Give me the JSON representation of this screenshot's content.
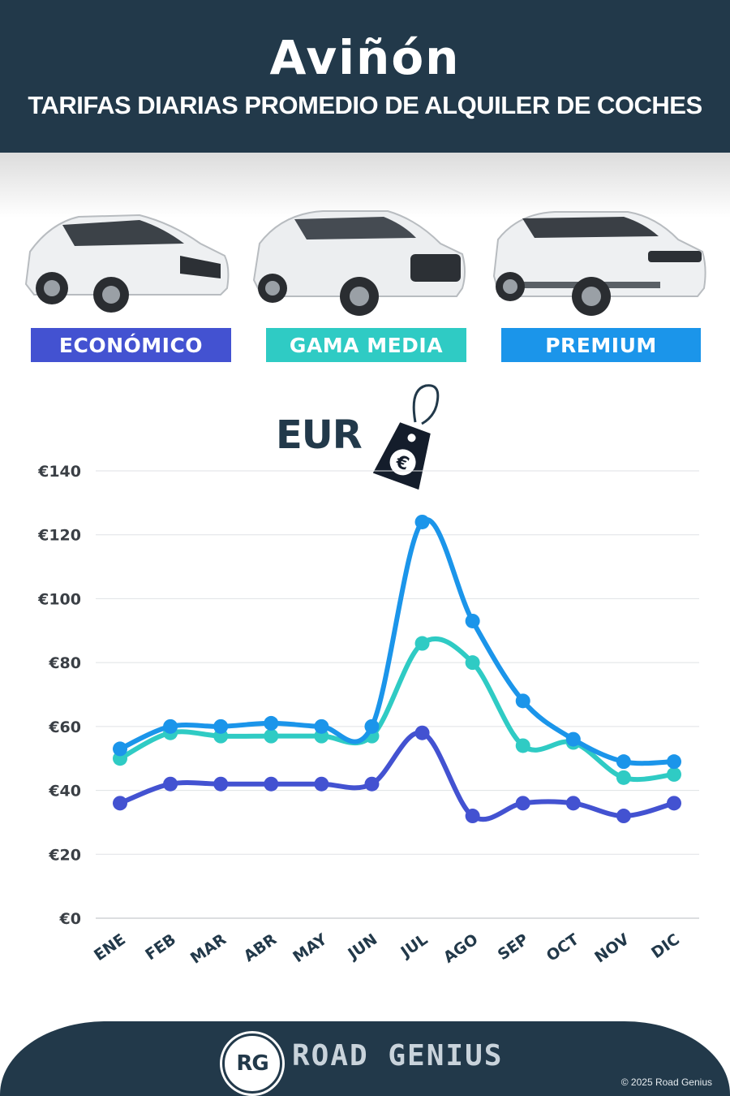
{
  "header": {
    "city": "Aviñón",
    "subtitle": "TARIFAS DIARIAS PROMEDIO DE ALQUILER DE COCHES"
  },
  "categories": [
    {
      "label": "ECONÓMICO",
      "color": "#4352d1",
      "icon": "hatchback-car"
    },
    {
      "label": "GAMA MEDIA",
      "color": "#2fcbc4",
      "icon": "suv-car"
    },
    {
      "label": "PREMIUM",
      "color": "#1b95ea",
      "icon": "luxury-suv-car"
    }
  ],
  "currency_label": "EUR",
  "currency_icon": "euro-price-tag-icon",
  "chart_data": {
    "type": "line",
    "categories": [
      "ENE",
      "FEB",
      "MAR",
      "ABR",
      "MAY",
      "JUN",
      "JUL",
      "AGO",
      "SEP",
      "OCT",
      "NOV",
      "DIC"
    ],
    "series": [
      {
        "name": "ECONÓMICO",
        "color": "#4352d1",
        "values": [
          36,
          42,
          42,
          42,
          42,
          42,
          58,
          32,
          36,
          36,
          32,
          36
        ]
      },
      {
        "name": "GAMA MEDIA",
        "color": "#2fcbc4",
        "values": [
          50,
          58,
          57,
          57,
          57,
          57,
          86,
          80,
          54,
          55,
          44,
          45
        ]
      },
      {
        "name": "PREMIUM",
        "color": "#1b95ea",
        "values": [
          53,
          60,
          60,
          61,
          60,
          60,
          124,
          93,
          68,
          56,
          49,
          49
        ]
      }
    ],
    "yticks": [
      "€0",
      "€20",
      "€40",
      "€60",
      "€80",
      "€100",
      "€120",
      "€140"
    ],
    "ylim": [
      0,
      140
    ],
    "grid": true
  },
  "footer": {
    "logo_text": "RG",
    "brand": "ROAD GENIUS",
    "copyright": "© 2025 Road Genius"
  }
}
